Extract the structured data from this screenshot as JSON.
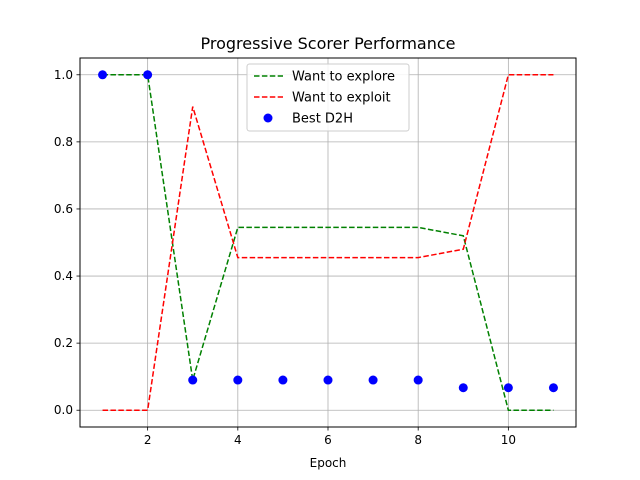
{
  "chart_data": {
    "type": "line",
    "title": "Progressive Scorer Performance",
    "xlabel": "Epoch",
    "ylabel": "",
    "xlim": [
      0.5,
      11.5
    ],
    "ylim": [
      -0.05,
      1.05
    ],
    "xticks": [
      2,
      4,
      6,
      8,
      10
    ],
    "yticks": [
      0.0,
      0.2,
      0.4,
      0.6,
      0.8,
      1.0
    ],
    "grid": true,
    "legend_position": "top-center",
    "series": [
      {
        "name": "Want to explore",
        "kind": "line",
        "style": "dashed",
        "color": "#008000",
        "x": [
          1,
          2,
          3,
          4,
          5,
          6,
          7,
          8,
          9,
          10,
          11
        ],
        "y": [
          1.0,
          1.0,
          0.09,
          0.545,
          0.545,
          0.545,
          0.545,
          0.545,
          0.52,
          0.0,
          0.0
        ]
      },
      {
        "name": "Want to exploit",
        "kind": "line",
        "style": "dashed",
        "color": "#ff0000",
        "x": [
          1,
          2,
          3,
          4,
          5,
          6,
          7,
          8,
          9,
          10,
          11
        ],
        "y": [
          0.0,
          0.0,
          0.905,
          0.455,
          0.455,
          0.455,
          0.455,
          0.455,
          0.48,
          1.0,
          1.0
        ]
      },
      {
        "name": "Best D2H",
        "kind": "scatter",
        "color": "#0000ff",
        "x": [
          1,
          2,
          3,
          4,
          5,
          6,
          7,
          8,
          9,
          10,
          11
        ],
        "y": [
          1.0,
          1.0,
          0.09,
          0.09,
          0.09,
          0.09,
          0.09,
          0.09,
          0.067,
          0.067,
          0.067
        ]
      }
    ]
  }
}
